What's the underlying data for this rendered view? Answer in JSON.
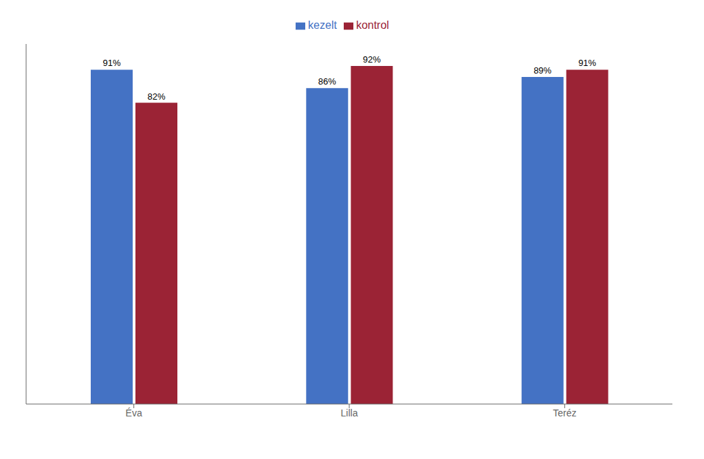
{
  "chart_data": {
    "type": "bar",
    "categories": [
      "Éva",
      "Lilla",
      "Teréz"
    ],
    "series": [
      {
        "name": "kezelt",
        "color": "#4472C4",
        "values": [
          91,
          86,
          89
        ],
        "value_labels": [
          "91%",
          "86%",
          "89%"
        ]
      },
      {
        "name": "kontrol",
        "color": "#9B2335",
        "values": [
          82,
          92,
          91
        ],
        "value_labels": [
          "82%",
          "92%",
          "91%"
        ]
      }
    ],
    "ylim": [
      0,
      98
    ],
    "grid": false,
    "legend": "top",
    "data_labels": true,
    "tick_labels": "x"
  }
}
